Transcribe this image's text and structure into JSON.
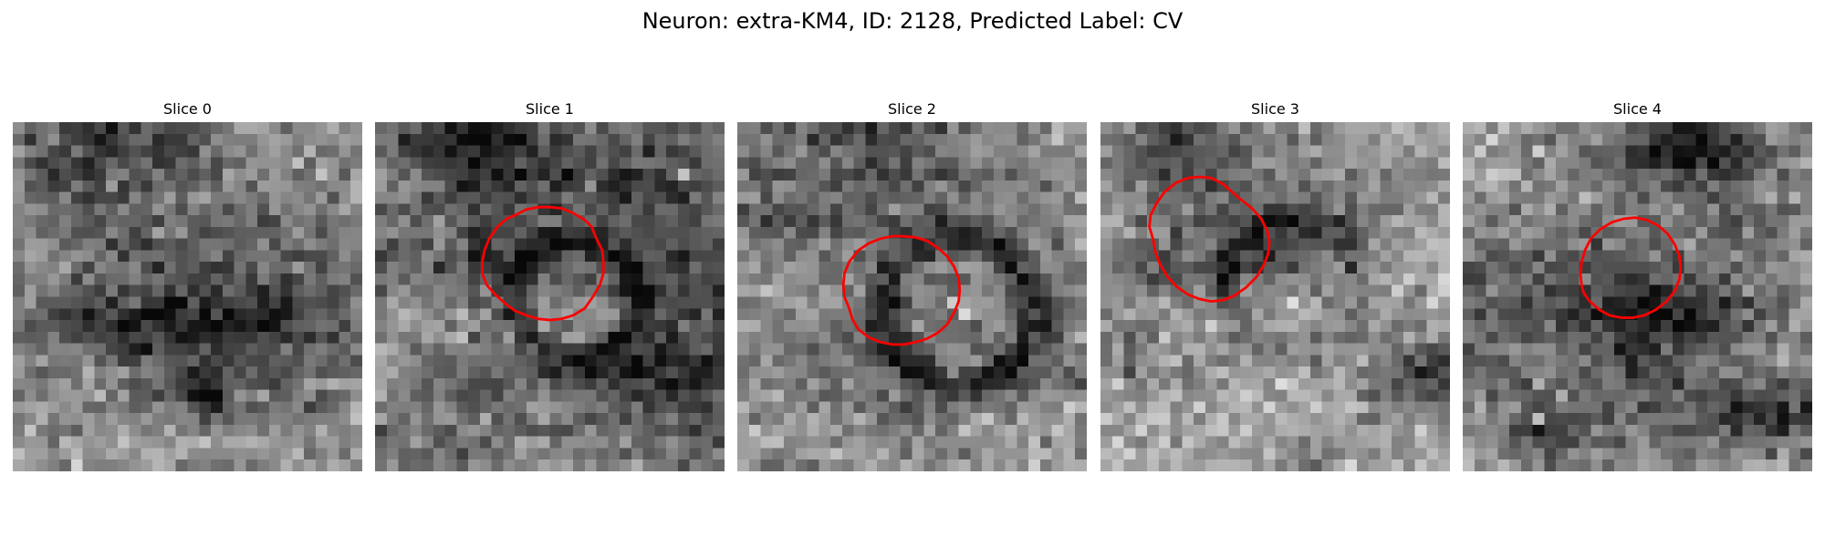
{
  "figure": {
    "title": "Neuron: extra-KM4, ID: 2128, Predicted Label: CV"
  },
  "colors": {
    "background": "#ffffff",
    "contour": "#ff0000",
    "colormap": "grayscale"
  },
  "grid_size": 30,
  "panels": [
    {
      "title": "Slice 0",
      "has_contour": false,
      "image": {
        "base": 158,
        "noise": 38,
        "dark_blobs": [
          [
            15,
            19,
            10,
            15,
            -80
          ],
          [
            3,
            5,
            3,
            10,
            -30
          ],
          [
            17,
            14,
            2,
            9,
            -45
          ],
          [
            7,
            6,
            3,
            4,
            -55
          ],
          [
            2,
            14,
            4,
            3,
            -40
          ],
          [
            17,
            6,
            3,
            12,
            -45
          ],
          [
            23,
            16,
            2,
            2,
            -110
          ],
          [
            1,
            8,
            2,
            4,
            -45
          ],
          [
            0,
            7,
            3,
            14,
            -35
          ],
          [
            4,
            3,
            2,
            3,
            -40
          ]
        ],
        "bright_spots": [
          [
            12,
            24,
            70
          ],
          [
            16,
            17,
            70
          ]
        ]
      }
    },
    {
      "title": "Slice 1",
      "has_contour": true,
      "image": {
        "base": 150,
        "noise": 38,
        "dark_blobs": [
          [
            13,
            27,
            17,
            8,
            -70
          ],
          [
            10,
            7,
            5,
            14,
            -35
          ],
          [
            3,
            10,
            7,
            5,
            -50
          ],
          [
            12,
            12,
            3,
            8,
            -40
          ],
          [
            0,
            8,
            3,
            8,
            -65
          ],
          [
            4,
            17,
            3,
            9,
            -60
          ],
          [
            22,
            7,
            3,
            6,
            -45
          ],
          [
            26,
            15,
            1,
            5,
            -40
          ],
          [
            21,
            22,
            3,
            9,
            -70
          ],
          [
            2,
            4,
            3,
            4,
            -50
          ],
          [
            28,
            5,
            3,
            8,
            -45
          ]
        ],
        "ring": {
          "cx": 16.8,
          "cy": 14.8,
          "r": 5.2,
          "w": 1.6,
          "d": -70,
          "core": 20
        },
        "bright_spots": [
          [
            5,
            18,
            70
          ],
          [
            4,
            26,
            80
          ]
        ]
      }
    },
    {
      "title": "Slice 2",
      "has_contour": true,
      "image": {
        "base": 150,
        "noise": 38,
        "dark_blobs": [
          [
            14,
            18,
            7,
            14,
            -45
          ],
          [
            7,
            0,
            3,
            9,
            -35
          ],
          [
            0,
            8,
            2,
            11,
            -45
          ],
          [
            4,
            14,
            2,
            5,
            -40
          ],
          [
            8,
            8,
            1,
            13,
            -40
          ],
          [
            21,
            25,
            2,
            5,
            -35
          ],
          [
            4,
            7,
            1,
            23,
            -25
          ],
          [
            29,
            5,
            1,
            6,
            -30
          ],
          [
            25,
            13,
            2,
            5,
            -25
          ],
          [
            1,
            11,
            3,
            9,
            -30
          ],
          [
            20,
            10,
            3,
            11,
            -30
          ]
        ],
        "ring": {
          "cx": 18.6,
          "cy": 15.8,
          "r": 6.4,
          "w": 1.6,
          "d": -75,
          "core": 25
        },
        "bright_spots": [
          [
            15,
            18,
            80
          ],
          [
            16,
            19,
            70
          ]
        ]
      }
    },
    {
      "title": "Slice 3",
      "has_contour": true,
      "image": {
        "base": 165,
        "noise": 38,
        "dark_blobs": [
          [
            9,
            16,
            5,
            6,
            -55
          ],
          [
            20,
            2,
            3,
            6,
            -40
          ],
          [
            2,
            5,
            4,
            6,
            -70
          ],
          [
            12,
            11,
            4,
            6,
            -45
          ],
          [
            12,
            3,
            3,
            6,
            -45
          ],
          [
            28,
            18,
            2,
            4,
            -30
          ],
          [
            23,
            28,
            2,
            6,
            -50
          ],
          [
            5,
            24,
            4,
            4,
            -30
          ],
          [
            4,
            10,
            6,
            9,
            -35
          ],
          [
            19,
            26,
            3,
            5,
            -35
          ],
          [
            21,
            29,
            2,
            6,
            -60
          ]
        ],
        "ring": {
          "cx": 16.0,
          "cy": 13.6,
          "r": 5.6,
          "w": 1.5,
          "d": -45,
          "core": 10
        },
        "bright_spots": [
          [
            22,
            1,
            80
          ],
          [
            15,
            16,
            60
          ]
        ]
      }
    },
    {
      "title": "Slice 4",
      "has_contour": true,
      "image": {
        "base": 155,
        "noise": 38,
        "dark_blobs": [
          [
            16,
            16,
            2,
            10,
            -60
          ],
          [
            12,
            5,
            4,
            11,
            -45
          ],
          [
            18,
            0,
            5,
            9,
            -50
          ],
          [
            2,
            17,
            3,
            8,
            -75
          ],
          [
            18,
            17,
            9,
            8,
            -80
          ],
          [
            1,
            20,
            4,
            5,
            -70
          ],
          [
            27,
            6,
            2,
            4,
            -50
          ],
          [
            24,
            26,
            3,
            4,
            -60
          ],
          [
            25,
            27,
            3,
            9,
            -45
          ],
          [
            8,
            25,
            3,
            5,
            -40
          ],
          [
            25,
            7,
            3,
            5,
            -40
          ]
        ],
        "bright_spots": [
          [
            25,
            6,
            80
          ],
          [
            14,
            2,
            60
          ]
        ]
      }
    }
  ]
}
